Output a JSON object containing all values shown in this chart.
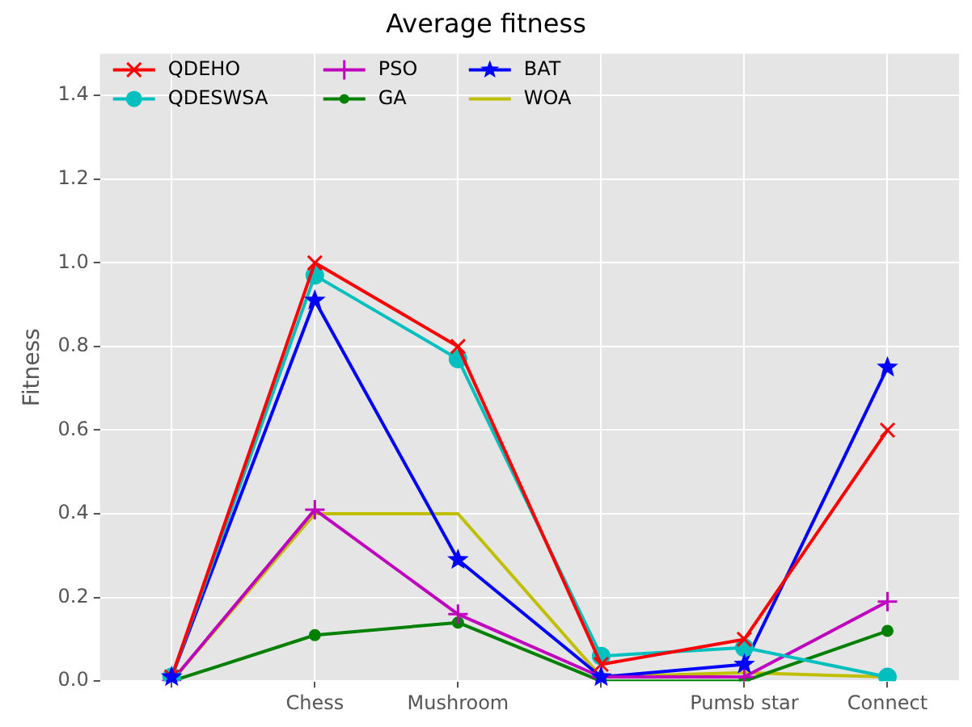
{
  "chart_data": {
    "type": "line",
    "title": "Average fitness",
    "ylabel": "Fitness",
    "categories": [
      null,
      "Chess",
      "Mushroom",
      null,
      "Pumsb star",
      "Connect"
    ],
    "series": [
      {
        "name": "QDEHO",
        "color": "#ff0000",
        "marker": "cross",
        "values": [
          0.01,
          1.0,
          0.8,
          0.04,
          0.1,
          0.6
        ]
      },
      {
        "name": "QDESWSA",
        "color": "#00bfbf",
        "marker": "circle",
        "values": [
          0.01,
          0.97,
          0.77,
          0.06,
          0.08,
          0.01
        ]
      },
      {
        "name": "PSO",
        "color": "#bf00bf",
        "marker": "cross",
        "values": [
          0,
          0.41,
          0.16,
          0.01,
          0.01,
          0.19
        ]
      },
      {
        "name": "GA",
        "color": "#008000",
        "marker": "circle",
        "values": [
          0,
          0.11,
          0.14,
          0,
          0,
          0.12
        ]
      },
      {
        "name": "BAT",
        "color": "#0000ff",
        "marker": "star",
        "values": [
          0.01,
          0.91,
          0.29,
          0.01,
          0.04,
          0.75
        ]
      },
      {
        "name": "WOA",
        "color": "#bfbf00",
        "marker": "none",
        "values": [
          0,
          0.4,
          0.4,
          0.01,
          0.02,
          0.01
        ]
      }
    ],
    "ylim": [
      0,
      1.5
    ],
    "yticks": [
      {
        "value": 0,
        "label": "0.0"
      },
      {
        "value": 0.2,
        "label": "0.2"
      },
      {
        "value": 0.4,
        "label": "0.4"
      },
      {
        "value": 0.6,
        "label": "0.6"
      },
      {
        "value": 0.8,
        "label": "0.8"
      },
      {
        "value": 1,
        "label": "1.0"
      },
      {
        "value": 1.2,
        "label": "1.2"
      },
      {
        "value": 1.4,
        "label": "1.4"
      }
    ],
    "grid": true,
    "legend": "top left",
    "line_style": "solid"
  }
}
